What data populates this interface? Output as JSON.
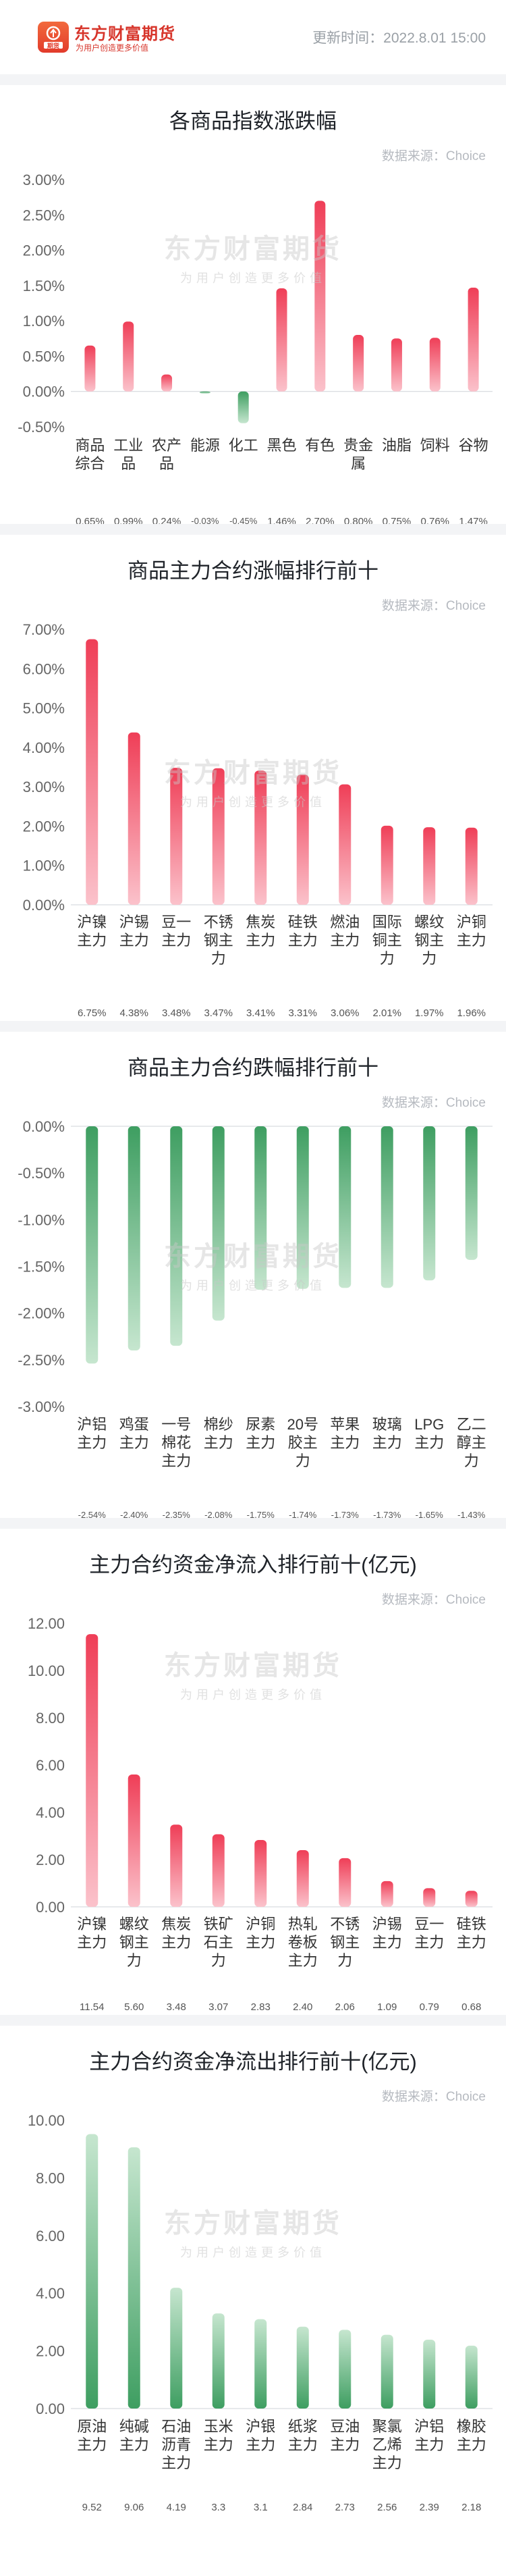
{
  "header": {
    "brand_name": "东方财富期货",
    "slogan": "为用户创造更多价值",
    "update_time": "更新时间：2022.8.01 15:00"
  },
  "colors": {
    "up": "#ef3e57",
    "up_light": "#fbc2cb",
    "down": "#3e9e61",
    "down_light": "#c6e6cf",
    "axis_text": "#666666",
    "grid": "#eeeeee"
  },
  "watermark": {
    "name": "东方财富期货",
    "slogan": "为用户创造更多价值"
  },
  "chart_data": [
    {
      "id": "index",
      "type": "bar",
      "title": "各商品指数涨跌幅",
      "source": "数据来源：Choice",
      "categories": [
        "商品综合",
        "工业品",
        "农产品",
        "能源",
        "化工",
        "黑色",
        "有色",
        "贵金属",
        "油脂",
        "饲料",
        "谷物"
      ],
      "values": [
        0.65,
        0.99,
        0.24,
        -0.03,
        -0.45,
        1.46,
        2.7,
        0.8,
        0.75,
        0.76,
        1.47
      ],
      "value_labels": [
        "0.65%",
        "0.99%",
        "0.24%",
        "-0.03%",
        "-0.45%",
        "1.46%",
        "2.70%",
        "0.80%",
        "0.75%",
        "0.76%",
        "1.47%"
      ],
      "ylim": [
        -0.5,
        3.0
      ],
      "yticks": [
        -0.5,
        0,
        0.5,
        1.0,
        1.5,
        2.0,
        2.5,
        3.0
      ],
      "ytick_labels": [
        "-0.50%",
        "0.00%",
        "0.50%",
        "1.00%",
        "1.50%",
        "2.00%",
        "2.50%",
        "3.00%"
      ]
    },
    {
      "id": "gainers",
      "type": "bar",
      "title": "商品主力合约涨幅排行前十",
      "source": "数据来源：Choice",
      "categories": [
        "沪镍主力",
        "沪锡主力",
        "豆一主力",
        "不锈钢主力",
        "焦炭主力",
        "硅铁主力",
        "燃油主力",
        "国际铜主力",
        "螺纹钢主力",
        "沪铜主力"
      ],
      "values": [
        6.75,
        4.38,
        3.48,
        3.47,
        3.41,
        3.31,
        3.06,
        2.01,
        1.97,
        1.96
      ],
      "value_labels": [
        "6.75%",
        "4.38%",
        "3.48%",
        "3.47%",
        "3.41%",
        "3.31%",
        "3.06%",
        "2.01%",
        "1.97%",
        "1.96%"
      ],
      "ylim": [
        0,
        7.0
      ],
      "yticks": [
        0,
        1,
        2,
        3,
        4,
        5,
        6,
        7
      ],
      "ytick_labels": [
        "0.00%",
        "1.00%",
        "2.00%",
        "3.00%",
        "4.00%",
        "5.00%",
        "6.00%",
        "7.00%"
      ]
    },
    {
      "id": "losers",
      "type": "bar",
      "title": "商品主力合约跌幅排行前十",
      "source": "数据来源：Choice",
      "categories": [
        "沪铝主力",
        "鸡蛋主力",
        "一号棉花主力",
        "棉纱主力",
        "尿素主力",
        "20号胶主力",
        "苹果主力",
        "玻璃主力",
        "LPG主力",
        "乙二醇主力"
      ],
      "values": [
        -2.54,
        -2.4,
        -2.35,
        -2.08,
        -1.75,
        -1.74,
        -1.73,
        -1.73,
        -1.65,
        -1.43
      ],
      "value_labels": [
        "-2.54%",
        "-2.40%",
        "-2.35%",
        "-2.08%",
        "-1.75%",
        "-1.74%",
        "-1.73%",
        "-1.73%",
        "-1.65%",
        "-1.43%"
      ],
      "ylim": [
        -3.0,
        0
      ],
      "yticks": [
        0,
        -0.5,
        -1.0,
        -1.5,
        -2.0,
        -2.5,
        -3.0
      ],
      "ytick_labels": [
        "0.00%",
        "-0.50%",
        "-1.00%",
        "-1.50%",
        "-2.00%",
        "-2.50%",
        "-3.00%"
      ]
    },
    {
      "id": "inflow",
      "type": "bar",
      "title": "主力合约资金净流入排行前十(亿元)",
      "source": "数据来源：Choice",
      "categories": [
        "沪镍主力",
        "螺纹钢主力",
        "焦炭主力",
        "铁矿石主力",
        "沪铜主力",
        "热轧卷板主力",
        "不锈钢主力",
        "沪锡主力",
        "豆一主力",
        "硅铁主力"
      ],
      "values": [
        11.54,
        5.6,
        3.48,
        3.07,
        2.83,
        2.4,
        2.06,
        1.09,
        0.79,
        0.68
      ],
      "value_labels": [
        "11.54",
        "5.60",
        "3.48",
        "3.07",
        "2.83",
        "2.40",
        "2.06",
        "1.09",
        "0.79",
        "0.68"
      ],
      "ylim": [
        0,
        12.0
      ],
      "yticks": [
        0,
        2,
        4,
        6,
        8,
        10,
        12
      ],
      "ytick_labels": [
        "0.00",
        "2.00",
        "4.00",
        "6.00",
        "8.00",
        "10.00",
        "12.00"
      ]
    },
    {
      "id": "outflow",
      "type": "bar",
      "title": "主力合约资金净流出排行前十(亿元)",
      "source": "数据来源：Choice",
      "categories": [
        "原油主力",
        "纯碱主力",
        "石油沥青主力",
        "玉米主力",
        "沪银主力",
        "纸浆主力",
        "豆油主力",
        "聚氯乙烯主力",
        "沪铝主力",
        "橡胶主力"
      ],
      "values": [
        9.52,
        9.06,
        4.19,
        3.3,
        3.1,
        2.84,
        2.73,
        2.56,
        2.39,
        2.18
      ],
      "value_labels": [
        "9.52",
        "9.06",
        "4.19",
        "3.3",
        "3.1",
        "2.84",
        "2.73",
        "2.56",
        "2.39",
        "2.18"
      ],
      "ylim": [
        0,
        10.0
      ],
      "yticks": [
        0,
        2,
        4,
        6,
        8,
        10
      ],
      "ytick_labels": [
        "0.00",
        "2.00",
        "4.00",
        "6.00",
        "8.00",
        "10.00"
      ]
    }
  ]
}
